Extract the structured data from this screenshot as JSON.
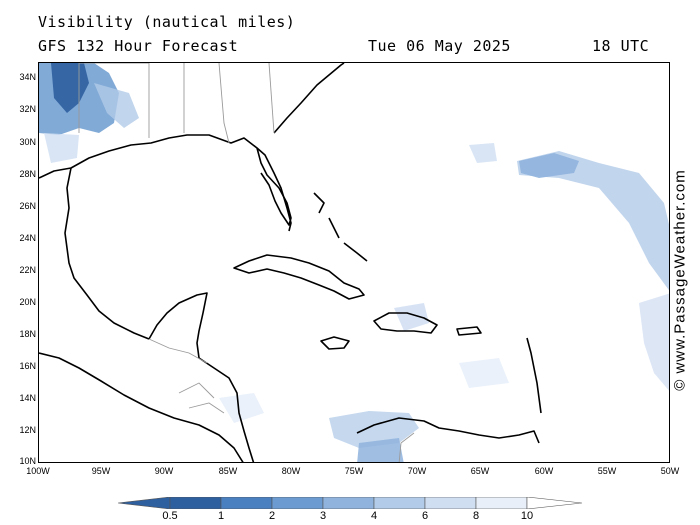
{
  "header": {
    "title": "Visibility (nautical miles)",
    "subtitle": "GFS 132 Hour Forecast",
    "date": "Tue 06 May 2025",
    "time": "18 UTC"
  },
  "map": {
    "lat_labels": [
      "34N",
      "32N",
      "30N",
      "28N",
      "26N",
      "24N",
      "22N",
      "20N",
      "18N",
      "16N",
      "14N",
      "12N",
      "10N"
    ],
    "lon_labels": [
      "100W",
      "95W",
      "90W",
      "85W",
      "80W",
      "75W",
      "70W",
      "65W",
      "60W",
      "55W",
      "50W"
    ],
    "colors": {
      "coast": "#000000",
      "borders": "#9a9a9a",
      "land": "#ffffff",
      "sea": "#ffffff"
    }
  },
  "legend": {
    "labels": [
      "0.5",
      "1",
      "2",
      "3",
      "4",
      "6",
      "8",
      "10"
    ],
    "colors": [
      "#2e5f9e",
      "#4a7fc0",
      "#6b9bd0",
      "#8fb3dd",
      "#b2cbe8",
      "#d0def2",
      "#e8eff9",
      "#ffffff"
    ]
  },
  "copyright": "© www.PassageWeather.com"
}
